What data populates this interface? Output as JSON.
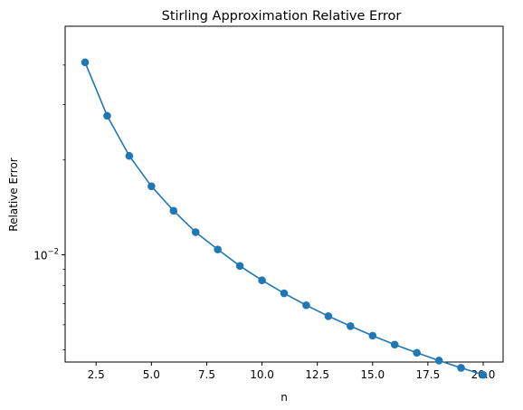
{
  "chart_data": {
    "type": "line",
    "title": "Stirling Approximation Relative Error",
    "xlabel": "n",
    "ylabel": "Relative Error",
    "xlim": [
      1.1,
      20.9
    ],
    "ylim": [
      0.00457,
      0.0531
    ],
    "yscale": "log",
    "grid": false,
    "color": "#1f77b4",
    "x_ticks": [
      {
        "value": 2.5,
        "label": "2.5"
      },
      {
        "value": 5.0,
        "label": "5.0"
      },
      {
        "value": 7.5,
        "label": "7.5"
      },
      {
        "value": 10.0,
        "label": "10.0"
      },
      {
        "value": 12.5,
        "label": "12.5"
      },
      {
        "value": 15.0,
        "label": "15.0"
      },
      {
        "value": 17.5,
        "label": "17.5"
      },
      {
        "value": 20.0,
        "label": "20.0"
      }
    ],
    "y_major_ticks": [
      {
        "value": 0.01,
        "base": "10",
        "exp": "−2"
      }
    ],
    "y_minor_ticks": [
      0.005,
      0.006,
      0.007,
      0.008,
      0.009,
      0.02,
      0.03,
      0.04
    ],
    "series": [
      {
        "x": [
          2,
          3,
          4,
          5,
          6,
          7,
          8,
          9,
          10,
          11,
          12,
          13,
          14,
          15,
          16,
          17,
          18,
          19,
          20
        ],
        "y": [
          0.0408,
          0.0276,
          0.0206,
          0.0165,
          0.0138,
          0.0118,
          0.0104,
          0.00922,
          0.0083,
          0.00755,
          0.00692,
          0.00639,
          0.00594,
          0.00554,
          0.00519,
          0.00489,
          0.00462,
          0.00438,
          0.00416
        ]
      }
    ]
  }
}
